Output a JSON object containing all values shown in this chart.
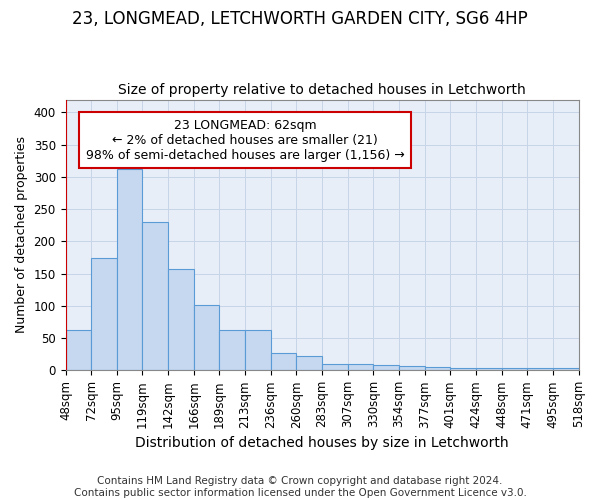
{
  "title1": "23, LONGMEAD, LETCHWORTH GARDEN CITY, SG6 4HP",
  "title2": "Size of property relative to detached houses in Letchworth",
  "xlabel": "Distribution of detached houses by size in Letchworth",
  "ylabel": "Number of detached properties",
  "bar_values": [
    63,
    174,
    313,
    230,
    157,
    102,
    62,
    62,
    27,
    22,
    10,
    10,
    9,
    7,
    5,
    4,
    3,
    3,
    4,
    3
  ],
  "bar_labels": [
    "48sqm",
    "72sqm",
    "95sqm",
    "119sqm",
    "142sqm",
    "166sqm",
    "189sqm",
    "213sqm",
    "236sqm",
    "260sqm",
    "283sqm",
    "307sqm",
    "330sqm",
    "354sqm",
    "377sqm",
    "401sqm",
    "424sqm",
    "448sqm",
    "471sqm",
    "495sqm",
    "518sqm"
  ],
  "bar_color": "#c5d8f0",
  "bar_edge_color": "#5b9bd5",
  "vline_color": "#cc0000",
  "annotation_text": "23 LONGMEAD: 62sqm\n← 2% of detached houses are smaller (21)\n98% of semi-detached houses are larger (1,156) →",
  "annotation_box_color": "#ffffff",
  "annotation_box_edgecolor": "#cc0000",
  "ylim": [
    0,
    420
  ],
  "yticks": [
    0,
    50,
    100,
    150,
    200,
    250,
    300,
    350,
    400
  ],
  "grid_color": "#c8d4e8",
  "background_color": "#e8eef8",
  "footer_text": "Contains HM Land Registry data © Crown copyright and database right 2024.\nContains public sector information licensed under the Open Government Licence v3.0.",
  "title1_fontsize": 12,
  "title2_fontsize": 10,
  "xlabel_fontsize": 10,
  "ylabel_fontsize": 9,
  "tick_fontsize": 8.5,
  "annotation_fontsize": 9,
  "footer_fontsize": 7.5
}
